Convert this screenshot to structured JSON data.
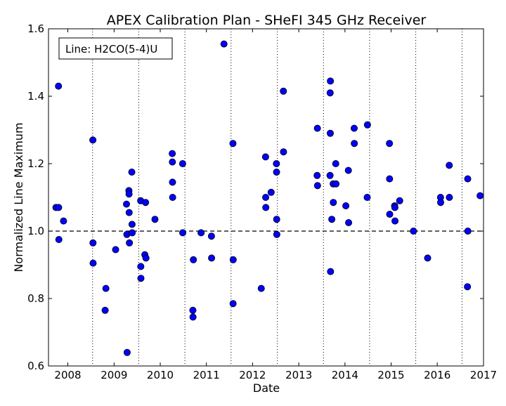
{
  "chart_data": {
    "type": "scatter",
    "title": "APEX Calibration Plan - SHeFI 345 GHz Receiver",
    "xlabel": "Date",
    "ylabel": "Normalized Line Maximum",
    "annotation": "Line: H2CO(5-4)U",
    "xlim": [
      "2007-08-01",
      "2017-01-01"
    ],
    "ylim": [
      0.6,
      1.6
    ],
    "x_ticks": [
      "2008",
      "2009",
      "2010",
      "2011",
      "2012",
      "2013",
      "2014",
      "2015",
      "2016",
      "2017"
    ],
    "y_ticks": [
      "0.6",
      "0.8",
      "1.0",
      "1.2",
      "1.4",
      "1.6"
    ],
    "reference_line": 1.0,
    "vertical_gridlines": [
      "2008-07-15",
      "2009-07-15",
      "2010-07-15",
      "2011-07-15",
      "2012-07-15",
      "2013-07-15",
      "2014-07-15",
      "2015-07-15",
      "2016-07-15"
    ],
    "marker_color": "#0000ff",
    "points": [
      [
        "2007-09-29",
        1.07
      ],
      [
        "2007-10-19",
        1.43
      ],
      [
        "2007-10-20",
        1.07
      ],
      [
        "2007-10-22",
        0.975
      ],
      [
        "2007-11-28",
        1.03
      ],
      [
        "2008-07-17",
        1.27
      ],
      [
        "2008-07-18",
        0.965
      ],
      [
        "2008-07-19",
        0.905
      ],
      [
        "2008-10-22",
        0.765
      ],
      [
        "2008-10-28",
        0.83
      ],
      [
        "2009-01-13",
        0.945
      ],
      [
        "2009-04-09",
        1.08
      ],
      [
        "2009-04-12",
        0.99
      ],
      [
        "2009-04-14",
        0.64
      ],
      [
        "2009-04-28",
        1.12
      ],
      [
        "2009-04-29",
        1.11
      ],
      [
        "2009-04-30",
        1.055
      ],
      [
        "2009-05-02",
        0.965
      ],
      [
        "2009-05-21",
        1.175
      ],
      [
        "2009-05-23",
        1.02
      ],
      [
        "2009-05-24",
        0.995
      ],
      [
        "2009-07-30",
        1.09
      ],
      [
        "2009-07-31",
        0.895
      ],
      [
        "2009-08-01",
        0.86
      ],
      [
        "2009-09-01",
        0.93
      ],
      [
        "2009-09-07",
        1.085
      ],
      [
        "2009-09-10",
        0.92
      ],
      [
        "2009-11-20",
        1.035
      ],
      [
        "2010-04-06",
        1.23
      ],
      [
        "2010-04-07",
        1.205
      ],
      [
        "2010-04-08",
        1.145
      ],
      [
        "2010-04-09",
        1.1
      ],
      [
        "2010-06-27",
        1.2
      ],
      [
        "2010-06-28",
        0.995
      ],
      [
        "2010-09-16",
        0.765
      ],
      [
        "2010-09-17",
        0.745
      ],
      [
        "2010-09-20",
        0.915
      ],
      [
        "2010-11-20",
        0.995
      ],
      [
        "2011-02-10",
        0.985
      ],
      [
        "2011-02-11",
        0.92
      ],
      [
        "2011-05-20",
        1.555
      ],
      [
        "2011-07-30",
        1.26
      ],
      [
        "2011-07-31",
        0.785
      ],
      [
        "2011-08-01",
        0.915
      ],
      [
        "2012-03-10",
        0.83
      ],
      [
        "2012-04-13",
        1.22
      ],
      [
        "2012-04-14",
        1.1
      ],
      [
        "2012-04-15",
        1.07
      ],
      [
        "2012-05-27",
        1.115
      ],
      [
        "2012-07-08",
        1.2
      ],
      [
        "2012-07-09",
        1.175
      ],
      [
        "2012-07-10",
        1.035
      ],
      [
        "2012-07-11",
        0.99
      ],
      [
        "2012-09-01",
        1.415
      ],
      [
        "2012-09-02",
        1.235
      ],
      [
        "2013-05-26",
        1.165
      ],
      [
        "2013-05-28",
        1.305
      ],
      [
        "2013-05-29",
        1.135
      ],
      [
        "2013-09-08",
        1.445
      ],
      [
        "2013-09-06",
        1.41
      ],
      [
        "2013-09-07",
        1.29
      ],
      [
        "2013-09-05",
        1.165
      ],
      [
        "2013-09-09",
        0.88
      ],
      [
        "2013-09-19",
        1.035
      ],
      [
        "2013-09-30",
        1.14
      ],
      [
        "2013-10-01",
        1.085
      ],
      [
        "2013-10-20",
        1.2
      ],
      [
        "2013-10-22",
        1.14
      ],
      [
        "2014-01-08",
        1.075
      ],
      [
        "2014-01-28",
        1.18
      ],
      [
        "2014-01-30",
        1.025
      ],
      [
        "2014-03-15",
        1.305
      ],
      [
        "2014-03-16",
        1.26
      ],
      [
        "2014-06-26",
        1.1
      ],
      [
        "2014-06-28",
        1.315
      ],
      [
        "2014-12-19",
        1.26
      ],
      [
        "2014-12-20",
        1.155
      ],
      [
        "2014-12-21",
        1.05
      ],
      [
        "2015-01-29",
        1.075
      ],
      [
        "2015-01-31",
        1.07
      ],
      [
        "2015-02-01",
        1.03
      ],
      [
        "2015-03-10",
        1.09
      ],
      [
        "2015-06-27",
        1.0
      ],
      [
        "2015-10-17",
        0.92
      ],
      [
        "2016-01-27",
        1.1
      ],
      [
        "2016-01-28",
        1.085
      ],
      [
        "2016-04-05",
        1.195
      ],
      [
        "2016-04-06",
        1.1
      ],
      [
        "2016-08-29",
        1.155
      ],
      [
        "2016-08-30",
        1.0
      ],
      [
        "2016-08-27",
        0.835
      ],
      [
        "2016-12-05",
        1.105
      ]
    ]
  }
}
